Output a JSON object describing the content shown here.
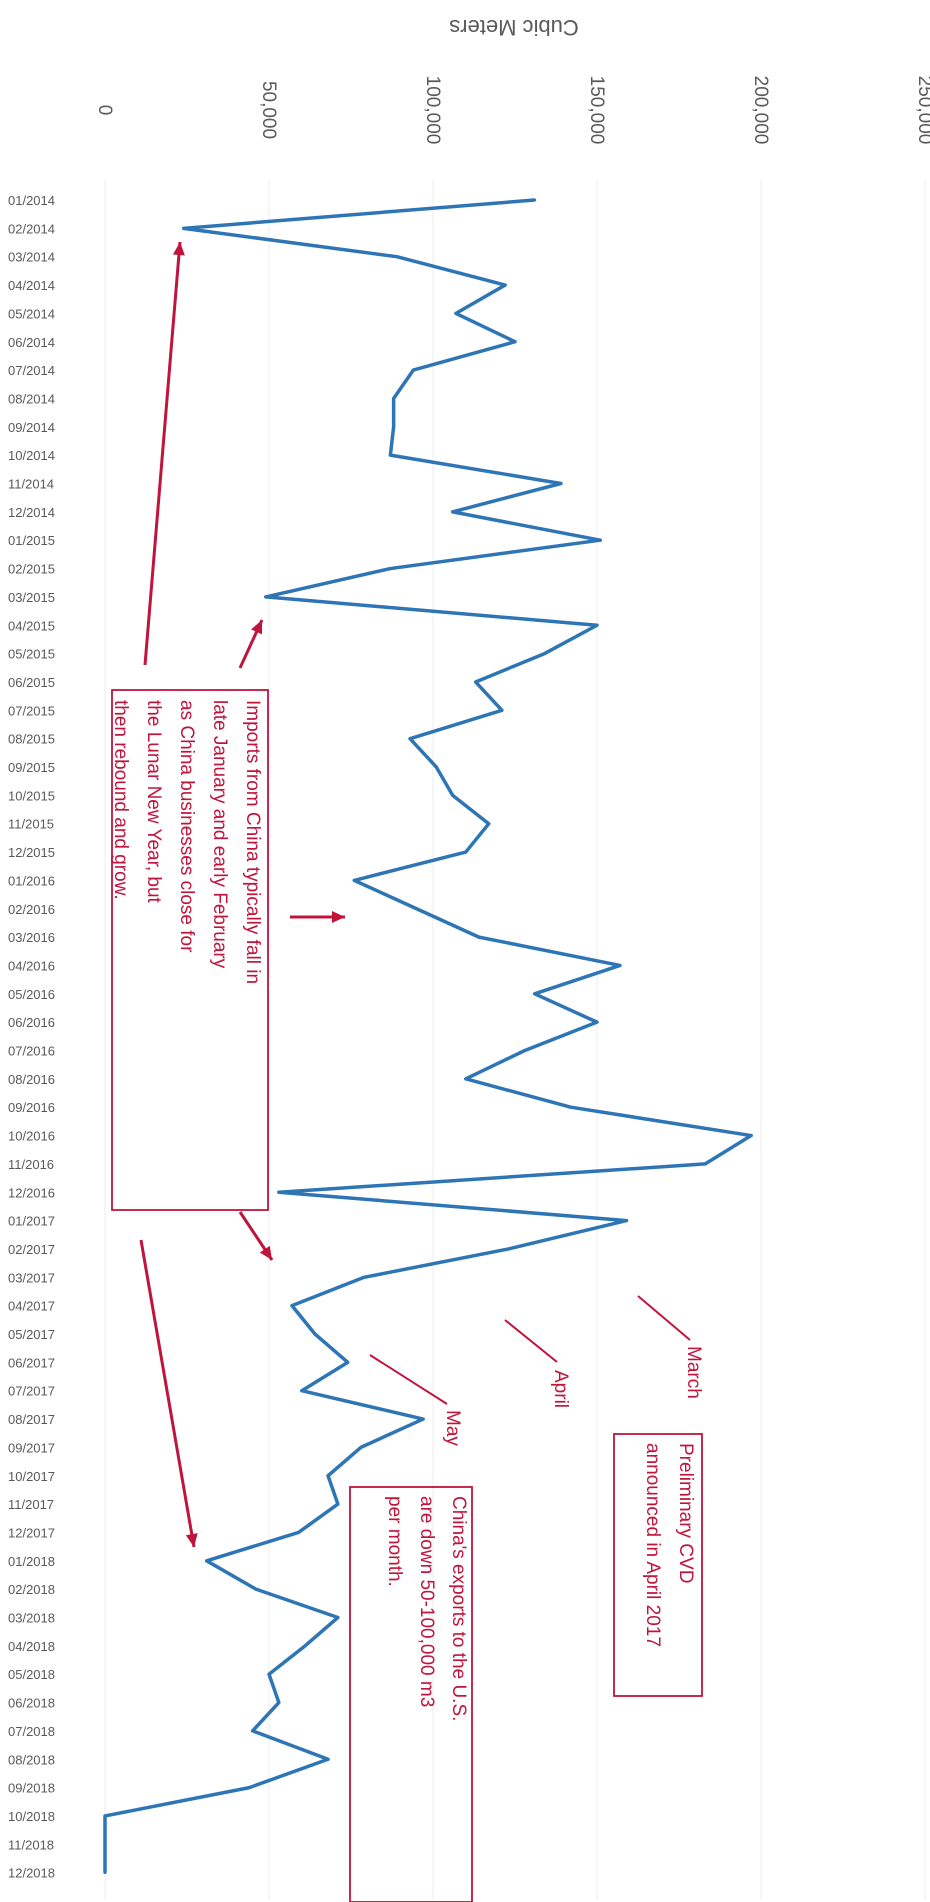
{
  "chart_data": {
    "type": "line",
    "title": "",
    "ylabel": "Cubic Meters",
    "ylim": [
      0,
      250000
    ],
    "value_ticks": [
      "0",
      "50,000",
      "100,000",
      "150,000",
      "200,000",
      "250,000"
    ],
    "value_tick_values": [
      0,
      50000,
      100000,
      150000,
      200000,
      250000
    ],
    "categories": [
      "01/2014",
      "02/2014",
      "03/2014",
      "04/2014",
      "05/2014",
      "06/2014",
      "07/2014",
      "08/2014",
      "09/2014",
      "10/2014",
      "11/2014",
      "12/2014",
      "01/2015",
      "02/2015",
      "03/2015",
      "04/2015",
      "05/2015",
      "06/2015",
      "07/2015",
      "08/2015",
      "09/2015",
      "10/2015",
      "11/2015",
      "12/2015",
      "01/2016",
      "02/2016",
      "03/2016",
      "04/2016",
      "05/2016",
      "06/2016",
      "07/2016",
      "08/2016",
      "09/2016",
      "10/2016",
      "11/2016",
      "12/2016",
      "01/2017",
      "02/2017",
      "03/2017",
      "04/2017",
      "05/2017",
      "06/2017",
      "07/2017",
      "08/2017",
      "09/2017",
      "10/2017",
      "11/2017",
      "12/2017",
      "01/2018",
      "02/2018",
      "03/2018",
      "04/2018",
      "05/2018",
      "06/2018",
      "07/2018",
      "08/2018",
      "09/2018",
      "10/2018",
      "11/2018",
      "12/2018"
    ],
    "series": [
      {
        "values": [
          131000,
          24000,
          89000,
          122000,
          107000,
          125000,
          94000,
          88000,
          88000,
          87000,
          139000,
          106000,
          151000,
          87000,
          49000,
          150000,
          134000,
          113000,
          121000,
          93000,
          101000,
          106000,
          117000,
          110000,
          76000,
          95000,
          114000,
          157000,
          131000,
          150000,
          128000,
          110000,
          142000,
          197000,
          183000,
          53000,
          159000,
          123000,
          79000,
          57000,
          64000,
          74000,
          60000,
          97000,
          78000,
          68000,
          71000,
          59000,
          31000,
          46000,
          71000,
          61000,
          50000,
          53000,
          45000,
          68000,
          44000,
          0,
          0,
          0
        ],
        "color": "#2e75b6"
      }
    ],
    "annotations": {
      "lunar_new_year": "Imports from China typically fall in late January and early February as China businesses close for the Lunar New Year, but then rebound and grow.",
      "preliminary_cvd": "Preliminary CVD announced in April 2017",
      "china_exports": "China's exports to the U.S. are down 50-100,000 m3 per month.",
      "month_march": "March",
      "month_april": "April",
      "month_may": "May"
    },
    "colors": {
      "line": "#2e75b6",
      "annotation": "#c0143c",
      "grid": "#ececec",
      "text": "#595959"
    },
    "grid": true
  }
}
